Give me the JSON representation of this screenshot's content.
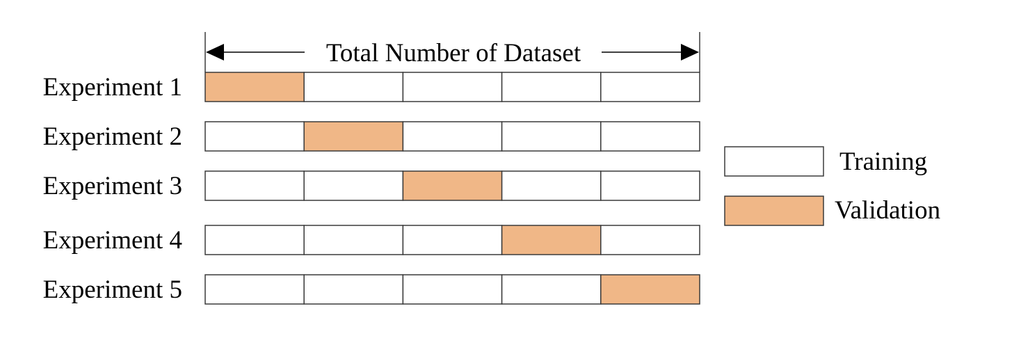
{
  "header": {
    "span_label": "Total Number of Dataset"
  },
  "experiments": [
    {
      "label": "Experiment 1",
      "validation_fold": 1
    },
    {
      "label": "Experiment 2",
      "validation_fold": 2
    },
    {
      "label": "Experiment 3",
      "validation_fold": 3
    },
    {
      "label": "Experiment 4",
      "validation_fold": 4
    },
    {
      "label": "Experiment 5",
      "validation_fold": 5
    }
  ],
  "folds_per_experiment": 5,
  "legend": {
    "items": [
      {
        "key": "training",
        "label": "Training",
        "color": "#ffffff"
      },
      {
        "key": "validation",
        "label": "Validation",
        "color": "#f0b787"
      }
    ]
  },
  "colors": {
    "training": "#ffffff",
    "validation": "#f0b787",
    "stroke": "#3a3a3a"
  }
}
